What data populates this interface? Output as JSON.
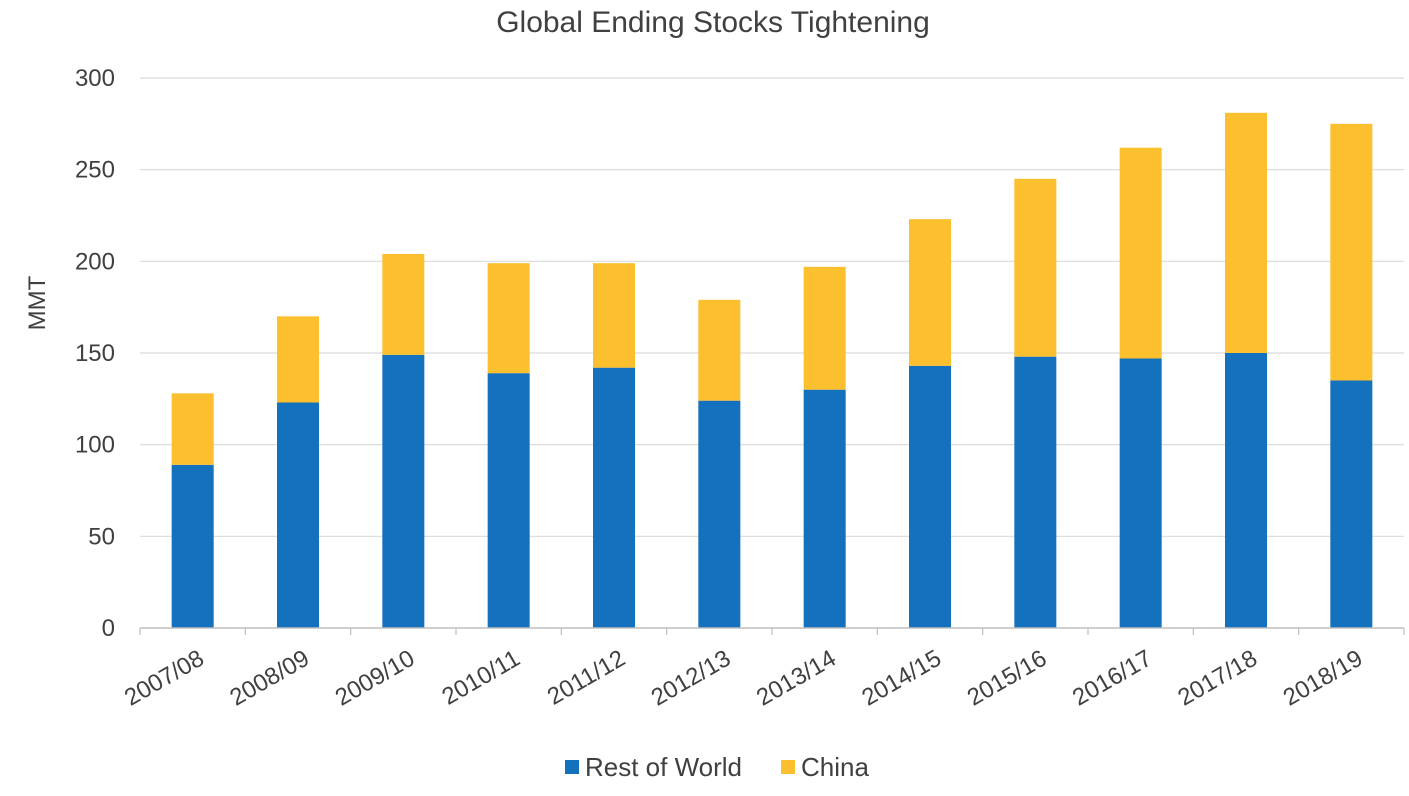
{
  "chart_data": {
    "type": "bar",
    "stacked": true,
    "title": "Global Ending Stocks Tightening",
    "xlabel": "",
    "ylabel": "MMT",
    "ylim": [
      0,
      300
    ],
    "yticks": [
      0,
      50,
      100,
      150,
      200,
      250,
      300
    ],
    "grid": true,
    "legend_position": "bottom",
    "categories": [
      "2007/08",
      "2008/09",
      "2009/10",
      "2010/11",
      "2011/12",
      "2012/13",
      "2013/14",
      "2014/15",
      "2015/16",
      "2016/17",
      "2017/18",
      "2018/19"
    ],
    "series": [
      {
        "name": "Rest of World",
        "color": "#1471bd",
        "values": [
          89,
          123,
          149,
          139,
          142,
          124,
          130,
          143,
          148,
          147,
          150,
          135
        ]
      },
      {
        "name": "China",
        "color": "#fcbf2e",
        "values": [
          39,
          47,
          55,
          60,
          57,
          55,
          67,
          80,
          97,
          115,
          131,
          140
        ]
      }
    ]
  }
}
